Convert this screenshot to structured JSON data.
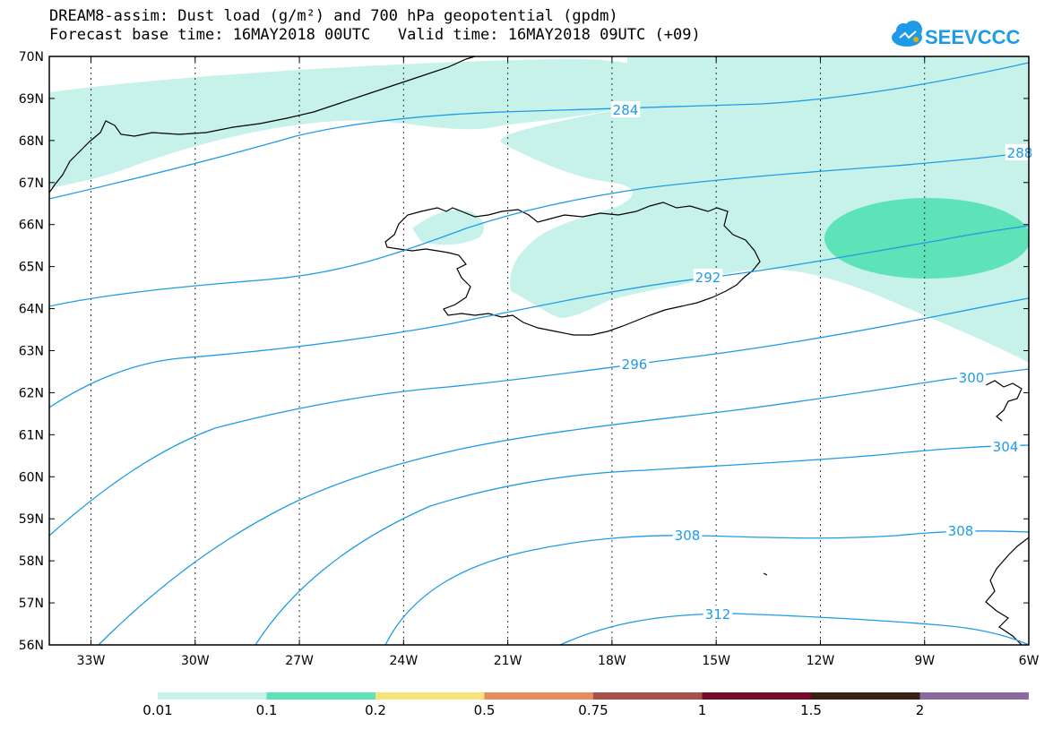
{
  "header": {
    "title_line1": "DREAM8-assim: Dust load (g/m²) and 700 hPa geopotential (gpdm)",
    "title_line2": "Forecast base time: 16MAY2018 00UTC   Valid time: 16MAY2018 09UTC (+09)"
  },
  "logo": {
    "text": "SEEVCCC",
    "color": "#1e9be8"
  },
  "colors": {
    "contour": "#1e9be8",
    "coast": "#000000"
  },
  "axes": {
    "lat_labels": [
      "70N",
      "69N",
      "68N",
      "67N",
      "66N",
      "65N",
      "64N",
      "63N",
      "62N",
      "61N",
      "60N",
      "59N",
      "58N",
      "57N",
      "56N"
    ],
    "lon_labels": [
      "33W",
      "30W",
      "27W",
      "24W",
      "21W",
      "18W",
      "15W",
      "12W",
      "9W",
      "6W"
    ],
    "lat_range": [
      56,
      70
    ],
    "lon_range": [
      -34.2,
      -6
    ]
  },
  "contour_labels": [
    "284",
    "288",
    "292",
    "296",
    "300",
    "304",
    "308",
    "308",
    "312"
  ],
  "colorbar": {
    "colors": [
      "#c6f2ea",
      "#5ee2b8",
      "#f6e37b",
      "#e68c5e",
      "#a8504a",
      "#7a0a2c",
      "#3a2212",
      "#8a6aa0"
    ],
    "labels": [
      "0.01",
      "0.1",
      "0.2",
      "0.5",
      "0.75",
      "1",
      "1.5",
      "2"
    ]
  }
}
